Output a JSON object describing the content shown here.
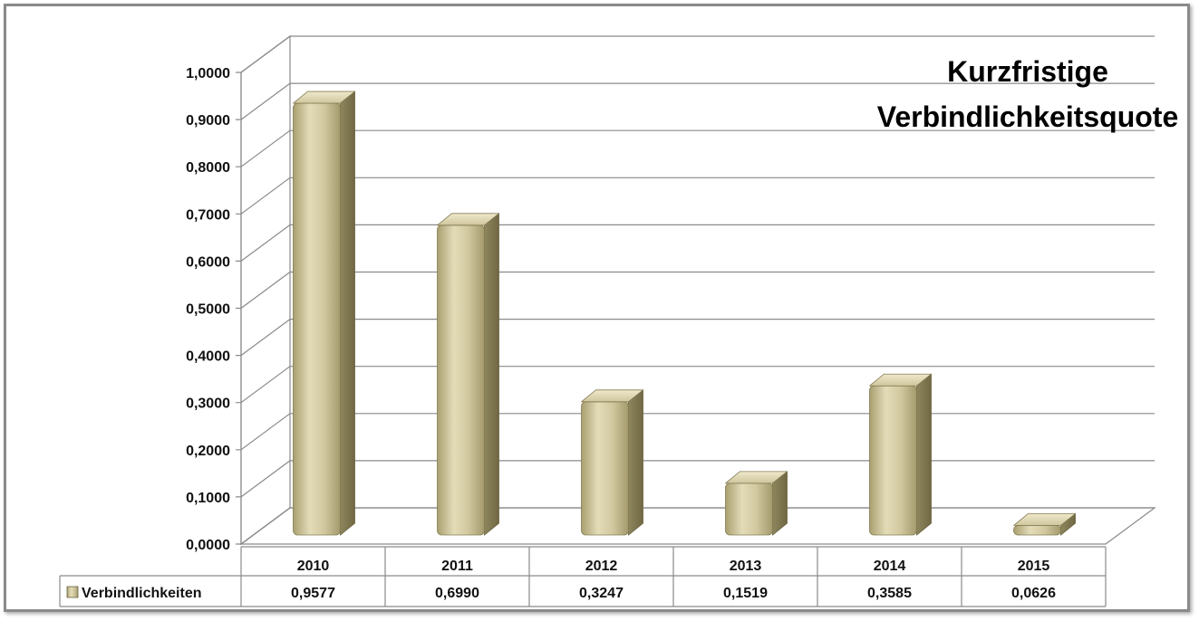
{
  "chart_data": {
    "type": "bar",
    "title_lines": [
      "Kurzfristige",
      "Verbindlichkeitsquote"
    ],
    "categories": [
      "2010",
      "2011",
      "2012",
      "2013",
      "2014",
      "2015"
    ],
    "series": [
      {
        "name": "Verbindlichkeiten",
        "values": [
          0.9577,
          0.699,
          0.3247,
          0.1519,
          0.3585,
          0.0626
        ],
        "value_labels": [
          "0,9577",
          "0,6990",
          "0,3247",
          "0,1519",
          "0,3585",
          "0,0626"
        ]
      }
    ],
    "ylim": [
      0,
      1
    ],
    "ytick_values": [
      0,
      0.1,
      0.2,
      0.3,
      0.4,
      0.5,
      0.6,
      0.7,
      0.8,
      0.9,
      1.0
    ],
    "ytick_labels": [
      "0,0000",
      "0,1000",
      "0,2000",
      "0,3000",
      "0,4000",
      "0,5000",
      "0,6000",
      "0,7000",
      "0,8000",
      "0,9000",
      "1,0000"
    ],
    "grid": true,
    "legend": "data-table",
    "bar_color": "#c8bf96"
  }
}
